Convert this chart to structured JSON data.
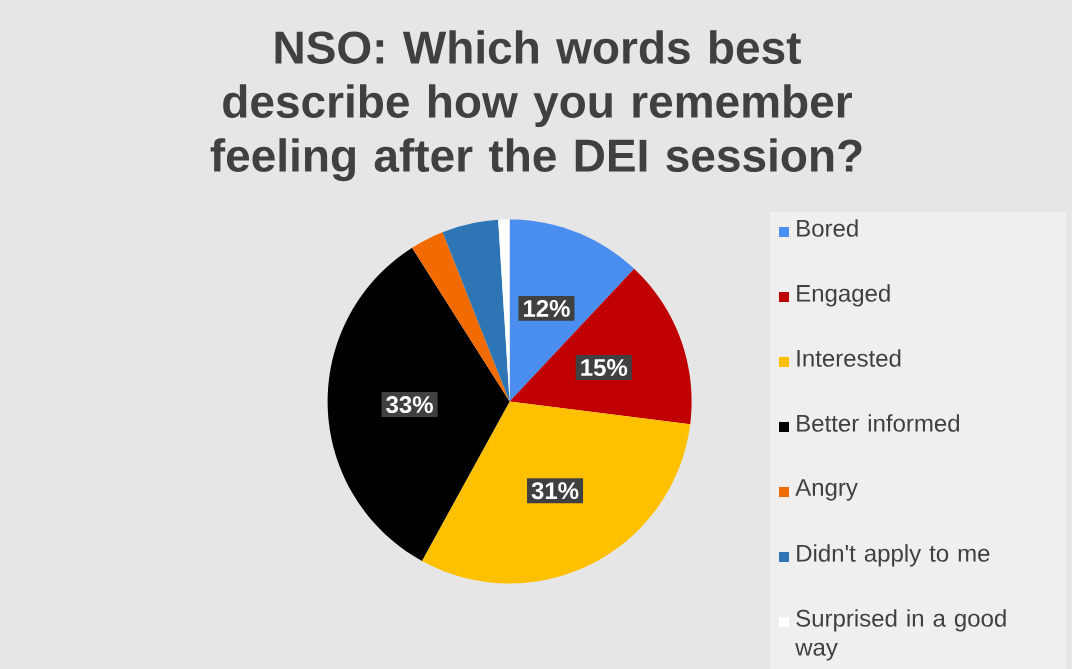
{
  "chart_data": {
    "type": "pie",
    "title": "NSO: Which words best describe how you remember feeling after the DEI session?",
    "categories": [
      "Bored",
      "Engaged",
      "Interested",
      "Better informed",
      "Angry",
      "Didn't apply to me",
      "Surprised in a good way"
    ],
    "values": [
      12,
      15,
      31,
      33,
      3,
      5,
      1
    ],
    "value_labels": [
      "12%",
      "15%",
      "31%",
      "33%",
      null,
      null,
      null
    ],
    "colors": [
      "#4a8ff0",
      "#c00000",
      "#ffc000",
      "#000000",
      "#f26b00",
      "#2e75b6",
      "#ffffff"
    ],
    "legend": "right"
  }
}
